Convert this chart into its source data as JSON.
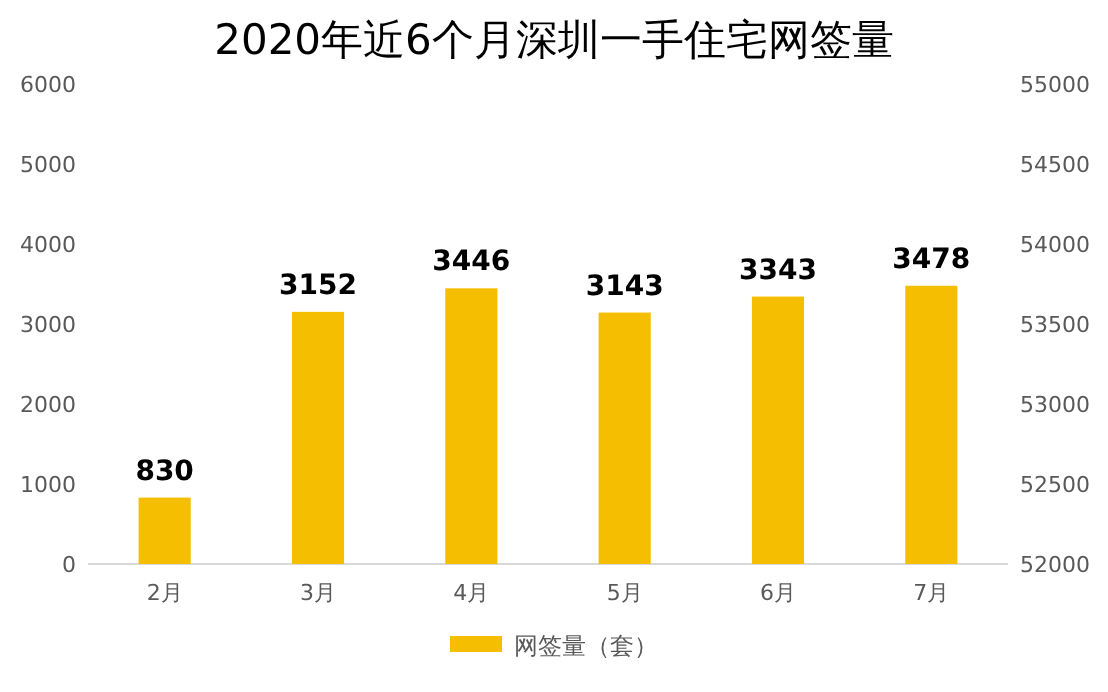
{
  "chart_data": {
    "type": "bar",
    "title": "2020年近6个月深圳一手住宅网签量",
    "categories": [
      "2月",
      "3月",
      "4月",
      "5月",
      "6月",
      "7月"
    ],
    "series": [
      {
        "name": "网签量（套）",
        "color": "#f5be00",
        "values": [
          830,
          3152,
          3446,
          3143,
          3343,
          3478
        ]
      }
    ],
    "ylim": [
      0,
      6000
    ],
    "yticks": [
      0,
      1000,
      2000,
      3000,
      4000,
      5000,
      6000
    ],
    "y2lim": [
      52000,
      55000
    ],
    "y2ticks": [
      52000,
      52500,
      53000,
      53500,
      54000,
      54500,
      55000
    ],
    "data_labels": true,
    "legend": "bottom",
    "grid": false
  }
}
